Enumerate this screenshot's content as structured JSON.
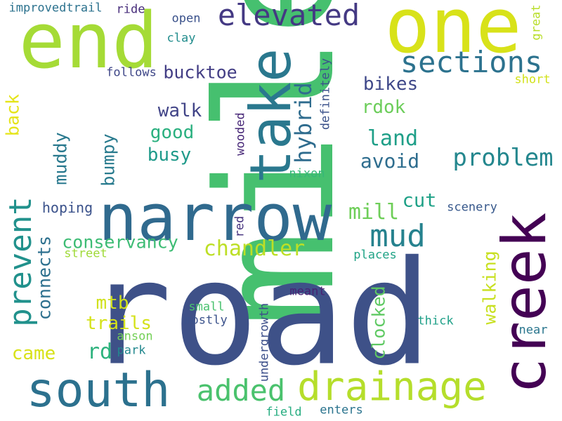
{
  "words": [
    {
      "text": "mile",
      "color": "#46c06f"
    },
    {
      "text": "road",
      "color": "#3e5188"
    },
    {
      "text": "one",
      "color": "#d8e219"
    },
    {
      "text": "end",
      "color": "#a5db36"
    },
    {
      "text": "narrow",
      "color": "#306a8e"
    },
    {
      "text": "take",
      "color": "#2a788e"
    },
    {
      "text": "creek",
      "color": "#440154"
    },
    {
      "text": "south",
      "color": "#2c718e"
    },
    {
      "text": "drainage",
      "color": "#b5de2b"
    },
    {
      "text": "elevated",
      "color": "#443983"
    },
    {
      "text": "sections",
      "color": "#2c728e"
    },
    {
      "text": "added",
      "color": "#4ac26d"
    },
    {
      "text": "mud",
      "color": "#26828e"
    },
    {
      "text": "prevent",
      "color": "#21918c"
    },
    {
      "text": "hybrid",
      "color": "#2f6c8e"
    },
    {
      "text": "problem",
      "color": "#24878e"
    },
    {
      "text": "chandler",
      "color": "#bddf26"
    },
    {
      "text": "conservancy",
      "color": "#3dbc74"
    },
    {
      "text": "bucktoe",
      "color": "#433e85"
    },
    {
      "text": "land",
      "color": "#1f9f88"
    },
    {
      "text": "avoid",
      "color": "#2e6d8e"
    },
    {
      "text": "bikes",
      "color": "#3f4889"
    },
    {
      "text": "rdok",
      "color": "#6ccd5a"
    },
    {
      "text": "walk",
      "color": "#414487"
    },
    {
      "text": "good",
      "color": "#2ab07f"
    },
    {
      "text": "busy",
      "color": "#1f9a8a"
    },
    {
      "text": "muddy",
      "color": "#29798e"
    },
    {
      "text": "bumpy",
      "color": "#297b8e"
    },
    {
      "text": "back",
      "color": "#e5e419"
    },
    {
      "text": "mill",
      "color": "#6ece58"
    },
    {
      "text": "cut",
      "color": "#1fa187"
    },
    {
      "text": "hoping",
      "color": "#3b528b"
    },
    {
      "text": "connects",
      "color": "#2d708e"
    },
    {
      "text": "walking",
      "color": "#c8e020"
    },
    {
      "text": "clocked",
      "color": "#5ec962"
    },
    {
      "text": "mtb",
      "color": "#d0e11c"
    },
    {
      "text": "trails",
      "color": "#d5e21a"
    },
    {
      "text": "rd",
      "color": "#2db27d"
    },
    {
      "text": "came",
      "color": "#d8e219"
    },
    {
      "text": "definitely",
      "color": "#3b528b"
    },
    {
      "text": "wooded",
      "color": "#482878"
    },
    {
      "text": "nixon",
      "color": "#35b779"
    },
    {
      "text": "red",
      "color": "#46337f"
    },
    {
      "text": "scenery",
      "color": "#38598c"
    },
    {
      "text": "places",
      "color": "#20a386"
    },
    {
      "text": "street",
      "color": "#a0da39"
    },
    {
      "text": "improvedtrail",
      "color": "#2c728e"
    },
    {
      "text": "ride",
      "color": "#472d7b"
    },
    {
      "text": "open",
      "color": "#3b528b"
    },
    {
      "text": "clay",
      "color": "#228d8d"
    },
    {
      "text": "great",
      "color": "#b8de29"
    },
    {
      "text": "short",
      "color": "#d2e21b"
    },
    {
      "text": "follows",
      "color": "#3f4788"
    },
    {
      "text": "undergrowth",
      "color": "#3c4f8a"
    },
    {
      "text": "meant",
      "color": "#482173"
    },
    {
      "text": "small",
      "color": "#48c16e"
    },
    {
      "text": "mostly",
      "color": "#3b528b"
    },
    {
      "text": "thick",
      "color": "#1fa088"
    },
    {
      "text": "near",
      "color": "#2a768e"
    },
    {
      "text": "anson",
      "color": "#73d056"
    },
    {
      "text": "park",
      "color": "#23888e"
    },
    {
      "text": "field",
      "color": "#27ad81"
    },
    {
      "text": "enters",
      "color": "#2b748e"
    }
  ]
}
